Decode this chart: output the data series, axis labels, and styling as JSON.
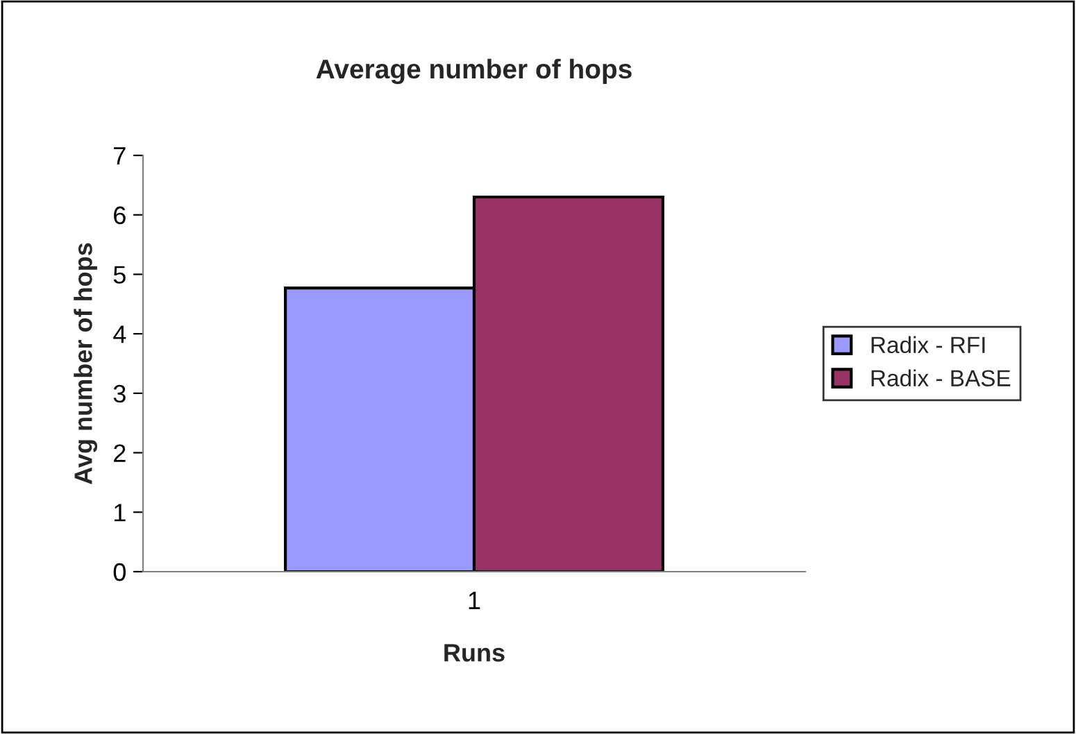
{
  "chart_data": {
    "type": "bar",
    "title": "Average number of hops",
    "xlabel": "Runs",
    "ylabel": "Avg number of hops",
    "categories": [
      "1"
    ],
    "series": [
      {
        "name": "Radix - RFI",
        "color": "#9999ff",
        "values": [
          4.77
        ]
      },
      {
        "name": "Radix - BASE",
        "color": "#993366",
        "values": [
          6.3
        ]
      }
    ],
    "ylim": [
      0,
      7
    ],
    "yticks": [
      0,
      1,
      2,
      3,
      4,
      5,
      6,
      7
    ],
    "grid": false,
    "legend": "right"
  }
}
